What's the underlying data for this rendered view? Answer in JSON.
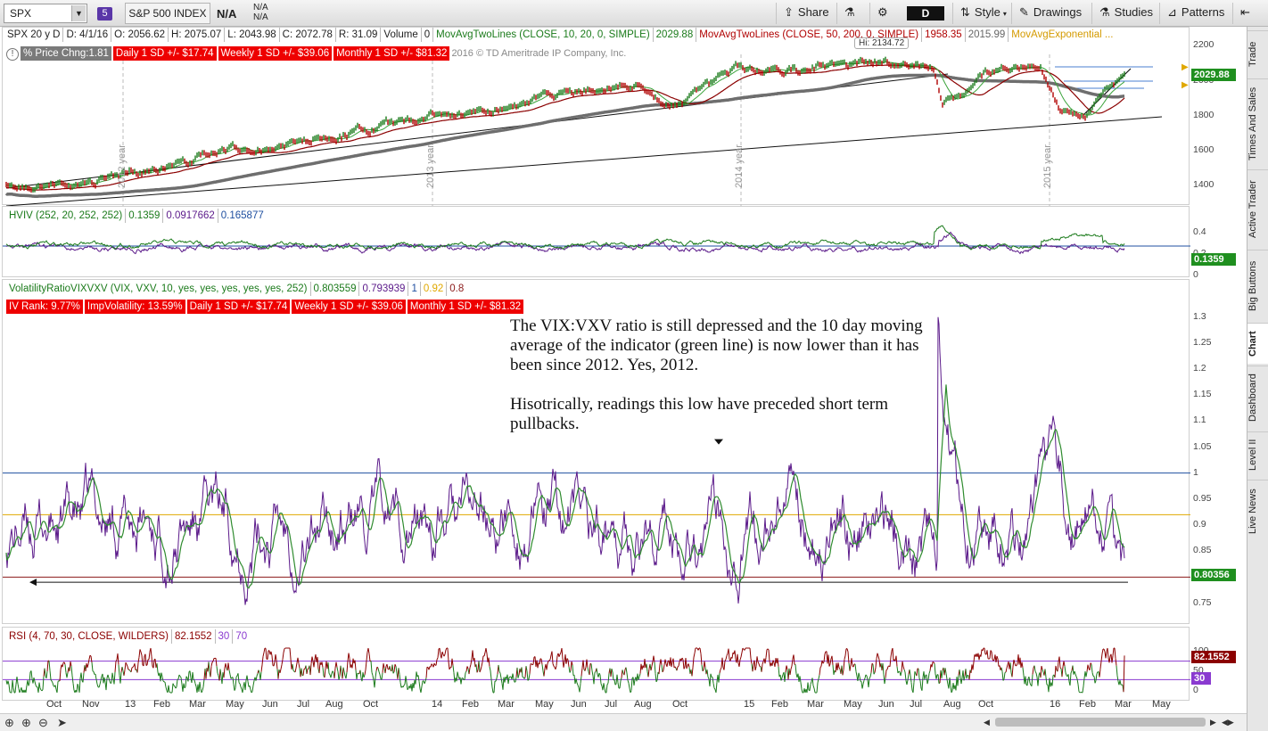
{
  "toolbar": {
    "symbol": "SPX",
    "group_badge": "5",
    "index_name": "S&P 500 INDEX",
    "price": "N/A",
    "change_top": "N/A",
    "change_bottom": "N/A",
    "share_label": "Share",
    "aggregation": "D",
    "style_label": "Style",
    "drawings_label": "Drawings",
    "studies_label": "Studies",
    "patterns_label": "Patterns"
  },
  "price_pane": {
    "header": [
      "SPX 20 y D",
      "D: 4/1/16",
      "O: 2056.62",
      "H: 2075.07",
      "L: 2043.98",
      "C: 2072.78",
      "R: 31.09",
      "Volume",
      "0"
    ],
    "ma1_label": "MovAvgTwoLines (CLOSE, 10, 20, 0, SIMPLE)",
    "ma1_value": "2029.88",
    "ma2_label": "MovAvgTwoLines (CLOSE, 50, 200, 0, SIMPLE)",
    "ma2_val1": "1958.35",
    "ma2_val2": "2015.99",
    "ma3_label": "MovAvgExponential ...",
    "pct_chg": "% Price Chng:1.81",
    "daily_sd": "Daily 1 SD +/- $17.74",
    "weekly_sd": "Weekly 1 SD +/- $39.06",
    "monthly_sd": "Monthly 1 SD +/- $81.32",
    "copyright": "2016 © TD Ameritrade IP Company, Inc.",
    "hi_label": "Hi: 2134.72",
    "last_tag": "2029.88",
    "y_ticks": [
      "2200",
      "2000",
      "1800",
      "1600",
      "1400"
    ],
    "year_labels": [
      "2012 year",
      "2013 year",
      "2014 year",
      "2015 year"
    ]
  },
  "hviv_pane": {
    "label": "HVIV (252, 20, 252, 252)",
    "v1": "0.1359",
    "v2": "0.0917662",
    "v3": "0.165877",
    "y_ticks": [
      "0.4",
      "0.2",
      "0"
    ],
    "last_tag": "0.1359"
  },
  "vix_pane": {
    "label": "VolatilityRatioVIXVXV (VIX, VXV, 10, yes, yes, yes, yes, yes, 252)",
    "v1": "0.803559",
    "v2": "0.793939",
    "v3": "1",
    "v4": "0.92",
    "v5": "0.8",
    "iv_rank": "IV Rank: 9.77%",
    "imp_vol": "ImpVolatility: 13.59%",
    "daily_sd": "Daily 1 SD +/- $17.74",
    "weekly_sd": "Weekly 1 SD +/- $39.06",
    "monthly_sd": "Monthly 1 SD +/- $81.32",
    "y_ticks": [
      "1.3",
      "1.25",
      "1.2",
      "1.15",
      "1.1",
      "1.05",
      "1",
      "0.95",
      "0.9",
      "0.85",
      "0.8",
      "0.75"
    ],
    "last_tag": "0.80356",
    "note_p1": "The VIX:VXV ratio is still depressed and the 10 day moving average of the indicator (green line) is now lower than it has been since 2012.  Yes, 2012.",
    "note_p2": "Hisotrically, readings this low have preceded short term pullbacks."
  },
  "rsi_pane": {
    "label": "RSI (4, 70, 30, CLOSE, WILDERS)",
    "value": "82.1552",
    "os": "30",
    "ob": "70",
    "y_ticks": [
      "100",
      "50",
      "0"
    ],
    "last_tag": "82.1552",
    "os_tag": "30"
  },
  "x_axis": [
    "Oct",
    "Nov",
    "13",
    "Feb",
    "Mar",
    "May",
    "Jun",
    "Jul",
    "Aug",
    "Oct",
    "14",
    "Feb",
    "Mar",
    "May",
    "Jun",
    "Jul",
    "Aug",
    "Oct",
    "15",
    "Feb",
    "Mar",
    "May",
    "Jun",
    "Jul",
    "Aug",
    "Oct",
    "16",
    "Feb",
    "Mar",
    "May"
  ],
  "sidebar_tabs": [
    "Trade",
    "Times And Sales",
    "Active Trader",
    "Big Buttons",
    "Chart",
    "Dashboard",
    "Level II",
    "Live News"
  ],
  "colors": {
    "price_line": "#1a7a1a",
    "ma_red": "#8b0000",
    "ma_grey": "#6e6e6e",
    "vix_purple": "#5b1a8a",
    "vix_green": "#2e8b2e",
    "level_blue": "#1f4fa0",
    "level_orange": "#e0a800",
    "level_darkred": "#8b1a1a",
    "tag_green": "#1f8f1f",
    "tag_darkred": "#8b0000",
    "tag_purple": "#8a3ad0"
  }
}
